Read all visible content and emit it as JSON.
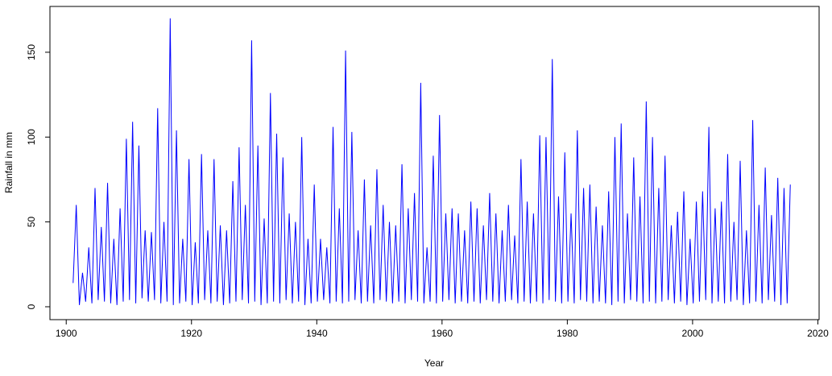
{
  "chart_data": {
    "type": "line",
    "x_label": "Year",
    "y_label": "Rainfall in mm",
    "xlim": [
      1897.4,
      2020.2
    ],
    "ylim": [
      -7.6,
      177
    ],
    "xticks": [
      1900,
      1920,
      1940,
      1960,
      1980,
      2000,
      2020
    ],
    "yticks": [
      0,
      50,
      100,
      150
    ],
    "series": [
      {
        "color": "#0000ff",
        "x": [
          1901.1,
          1901.6,
          1902.1,
          1902.6,
          1903.1,
          1903.6,
          1904.1,
          1904.6,
          1905.1,
          1905.6,
          1906.1,
          1906.6,
          1907.1,
          1907.6,
          1908.1,
          1908.6,
          1909.1,
          1909.6,
          1910.1,
          1910.6,
          1911.1,
          1911.6,
          1912.1,
          1912.6,
          1913.1,
          1913.6,
          1914.1,
          1914.6,
          1915.1,
          1915.6,
          1916.1,
          1916.6,
          1917.1,
          1917.6,
          1918.1,
          1918.6,
          1919.1,
          1919.6,
          1920.1,
          1920.6,
          1921.1,
          1921.6,
          1922.1,
          1922.6,
          1923.1,
          1923.6,
          1924.1,
          1924.6,
          1925.1,
          1925.6,
          1926.1,
          1926.6,
          1927.1,
          1927.6,
          1928.1,
          1928.6,
          1929.1,
          1929.6,
          1930.1,
          1930.6,
          1931.1,
          1931.6,
          1932.1,
          1932.6,
          1933.1,
          1933.6,
          1934.1,
          1934.6,
          1935.1,
          1935.6,
          1936.1,
          1936.6,
          1937.1,
          1937.6,
          1938.1,
          1938.6,
          1939.1,
          1939.6,
          1940.1,
          1940.6,
          1941.1,
          1941.6,
          1942.1,
          1942.6,
          1943.1,
          1943.6,
          1944.1,
          1944.6,
          1945.1,
          1945.6,
          1946.1,
          1946.6,
          1947.1,
          1947.6,
          1948.1,
          1948.6,
          1949.1,
          1949.6,
          1950.1,
          1950.6,
          1951.1,
          1951.6,
          1952.1,
          1952.6,
          1953.1,
          1953.6,
          1954.1,
          1954.6,
          1955.1,
          1955.6,
          1956.1,
          1956.6,
          1957.1,
          1957.6,
          1958.1,
          1958.6,
          1959.1,
          1959.6,
          1960.1,
          1960.6,
          1961.1,
          1961.6,
          1962.1,
          1962.6,
          1963.1,
          1963.6,
          1964.1,
          1964.6,
          1965.1,
          1965.6,
          1966.1,
          1966.6,
          1967.1,
          1967.6,
          1968.1,
          1968.6,
          1969.1,
          1969.6,
          1970.1,
          1970.6,
          1971.1,
          1971.6,
          1972.1,
          1972.6,
          1973.1,
          1973.6,
          1974.1,
          1974.6,
          1975.1,
          1975.6,
          1976.1,
          1976.6,
          1977.1,
          1977.6,
          1978.1,
          1978.6,
          1979.1,
          1979.6,
          1980.1,
          1980.6,
          1981.1,
          1981.6,
          1982.1,
          1982.6,
          1983.1,
          1983.6,
          1984.1,
          1984.6,
          1985.1,
          1985.6,
          1986.1,
          1986.6,
          1987.1,
          1987.6,
          1988.1,
          1988.6,
          1989.1,
          1989.6,
          1990.1,
          1990.6,
          1991.1,
          1991.6,
          1992.1,
          1992.6,
          1993.1,
          1993.6,
          1994.1,
          1994.6,
          1995.1,
          1995.6,
          1996.1,
          1996.6,
          1997.1,
          1997.6,
          1998.1,
          1998.6,
          1999.1,
          1999.6,
          2000.1,
          2000.6,
          2001.1,
          2001.6,
          2002.1,
          2002.6,
          2003.1,
          2003.6,
          2004.1,
          2004.6,
          2005.1,
          2005.6,
          2006.1,
          2006.6,
          2007.1,
          2007.6,
          2008.1,
          2008.6,
          2009.1,
          2009.6,
          2010.1,
          2010.6,
          2011.1,
          2011.6,
          2012.1,
          2012.6,
          2013.1,
          2013.6,
          2014.1,
          2014.6,
          2015.1,
          2015.6
        ],
        "values": [
          14,
          60,
          1,
          20,
          3,
          35,
          2,
          70,
          4,
          47,
          3,
          73,
          2,
          40,
          1,
          58,
          3,
          99,
          4,
          109,
          2,
          95,
          5,
          45,
          3,
          44,
          4,
          117,
          2,
          50,
          3,
          170,
          1,
          104,
          2,
          40,
          3,
          87,
          1,
          38,
          2,
          90,
          4,
          45,
          2,
          87,
          3,
          48,
          1,
          45,
          2,
          74,
          3,
          94,
          4,
          60,
          2,
          157,
          3,
          95,
          1,
          52,
          2,
          126,
          3,
          102,
          2,
          88,
          4,
          55,
          2,
          50,
          3,
          100,
          1,
          40,
          2,
          72,
          3,
          40,
          4,
          35,
          2,
          106,
          3,
          58,
          2,
          151,
          3,
          103,
          4,
          45,
          2,
          75,
          3,
          48,
          2,
          81,
          4,
          60,
          3,
          50,
          2,
          48,
          3,
          84,
          2,
          58,
          4,
          67,
          3,
          132,
          2,
          35,
          3,
          89,
          2,
          113,
          3,
          55,
          4,
          58,
          2,
          55,
          3,
          45,
          2,
          62,
          3,
          58,
          2,
          48,
          4,
          67,
          3,
          55,
          2,
          45,
          3,
          60,
          4,
          42,
          2,
          87,
          3,
          62,
          2,
          55,
          3,
          101,
          2,
          100,
          4,
          146,
          3,
          65,
          2,
          91,
          3,
          55,
          2,
          104,
          4,
          70,
          3,
          72,
          2,
          59,
          3,
          48,
          2,
          68,
          1,
          100,
          3,
          108,
          2,
          55,
          4,
          88,
          3,
          65,
          2,
          121,
          3,
          100,
          2,
          70,
          3,
          89,
          4,
          48,
          2,
          56,
          3,
          68,
          1,
          40,
          2,
          62,
          3,
          68,
          4,
          106,
          2,
          58,
          3,
          62,
          2,
          90,
          3,
          50,
          4,
          86,
          1,
          45,
          2,
          110,
          3,
          60,
          2,
          82,
          4,
          54,
          3,
          76,
          1,
          70,
          2,
          72
        ]
      }
    ]
  }
}
